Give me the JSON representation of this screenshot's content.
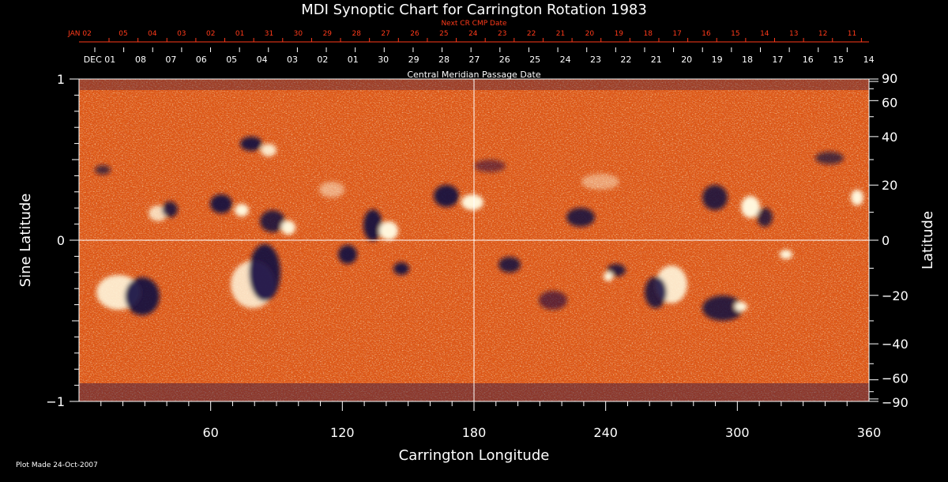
{
  "chart_data": {
    "type": "heatmap",
    "title": "MDI Synoptic Chart for Carrington Rotation 1983",
    "xlabel": "Carrington Longitude",
    "ylabel_left": "Sine Latitude",
    "ylabel_right": "Latitude",
    "xlim": [
      0,
      360
    ],
    "ylim": [
      -1,
      1
    ],
    "x_ticks": [
      60,
      120,
      180,
      240,
      300,
      360
    ],
    "y_ticks_left": [
      {
        "value": 1,
        "label": "1"
      },
      {
        "value": 0,
        "label": "0"
      },
      {
        "value": -1,
        "label": "−1"
      }
    ],
    "y_ticks_right": [
      {
        "lat": 90,
        "label": "90"
      },
      {
        "lat": 60,
        "label": "60"
      },
      {
        "lat": 40,
        "label": "40"
      },
      {
        "lat": 20,
        "label": "20"
      },
      {
        "lat": 0,
        "label": "0"
      },
      {
        "lat": -20,
        "label": "−20"
      },
      {
        "lat": -40,
        "label": "−40"
      },
      {
        "lat": -60,
        "label": "−60"
      },
      {
        "lat": -90,
        "label": "−90"
      }
    ],
    "top_axis_label": "Central Meridian Passage Date",
    "top_dates": [
      "DEC 01",
      "08",
      "07",
      "06",
      "05",
      "04",
      "03",
      "02",
      "01",
      "30",
      "29",
      "28",
      "27",
      "26",
      "25",
      "24",
      "23",
      "22",
      "21",
      "20",
      "19",
      "18",
      "17",
      "16",
      "15",
      "14"
    ],
    "next_axis_label": "Next CR CMP Date",
    "next_dates": [
      "JAN 02",
      "05",
      "04",
      "03",
      "02",
      "01",
      "31",
      "30",
      "29",
      "28",
      "27",
      "26",
      "25",
      "24",
      "23",
      "22",
      "21",
      "20",
      "19",
      "18",
      "17",
      "16",
      "15",
      "14",
      "13",
      "12",
      "11"
    ],
    "grid": "crosshair at longitude 180 and sine latitude 0",
    "colors": {
      "background": "#000000",
      "field_base": "#d84e12",
      "positive_polarity": "#fff6dc",
      "negative_polarity": "#120a40",
      "grid_lines": "#ffffff",
      "next_axis": "#ff3a1a"
    }
  },
  "footer_note": "Plot Made 24-Oct-2007"
}
